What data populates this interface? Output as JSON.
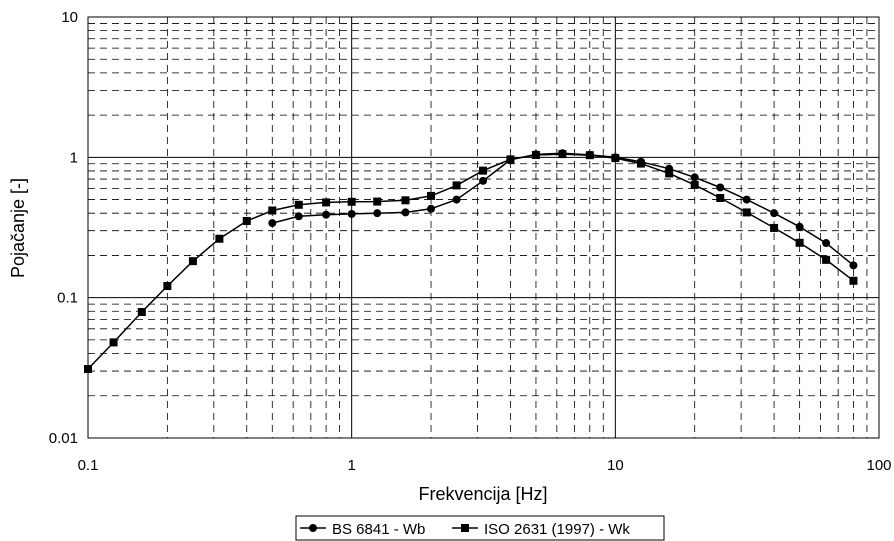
{
  "chart_data": {
    "type": "line",
    "xscale": "log",
    "yscale": "log",
    "xlim": [
      0.1,
      100
    ],
    "ylim": [
      0.01,
      10
    ],
    "xlabel": "Frekvencija [Hz]",
    "ylabel": "Pojačanje [-]",
    "x_ticks": [
      "0.1",
      "1",
      "10",
      "100"
    ],
    "y_ticks": [
      "0.01",
      "0.1",
      "1",
      "10"
    ],
    "grid": {
      "major": "solid",
      "minor": "dashed"
    },
    "legend_position": "bottom",
    "series": [
      {
        "name": "BS 6841 - Wb",
        "marker": "circle",
        "color": "#000000",
        "x": [
          0.5,
          0.63,
          0.8,
          1,
          1.25,
          1.6,
          2,
          2.5,
          3.15,
          4,
          5,
          6.3,
          8,
          10,
          12.5,
          16,
          20,
          25,
          31.5,
          40,
          50,
          63,
          80
        ],
        "y": [
          0.34,
          0.38,
          0.39,
          0.395,
          0.4,
          0.405,
          0.43,
          0.5,
          0.68,
          0.96,
          1.05,
          1.07,
          1.04,
          1.0,
          0.93,
          0.83,
          0.72,
          0.61,
          0.5,
          0.4,
          0.32,
          0.245,
          0.17
        ]
      },
      {
        "name": "ISO 2631 (1997) - Wk",
        "marker": "square",
        "color": "#000000",
        "x": [
          0.1,
          0.125,
          0.16,
          0.2,
          0.25,
          0.315,
          0.4,
          0.5,
          0.63,
          0.8,
          1,
          1.25,
          1.6,
          2,
          2.5,
          3.15,
          4,
          5,
          6.3,
          8,
          10,
          12.5,
          16,
          20,
          25,
          31.5,
          40,
          50,
          63,
          80
        ],
        "y": [
          0.031,
          0.048,
          0.079,
          0.121,
          0.182,
          0.263,
          0.352,
          0.418,
          0.459,
          0.477,
          0.482,
          0.484,
          0.494,
          0.531,
          0.631,
          0.804,
          0.967,
          1.039,
          1.054,
          1.036,
          0.988,
          0.902,
          0.768,
          0.636,
          0.513,
          0.405,
          0.314,
          0.246,
          0.186,
          0.132
        ]
      }
    ]
  }
}
